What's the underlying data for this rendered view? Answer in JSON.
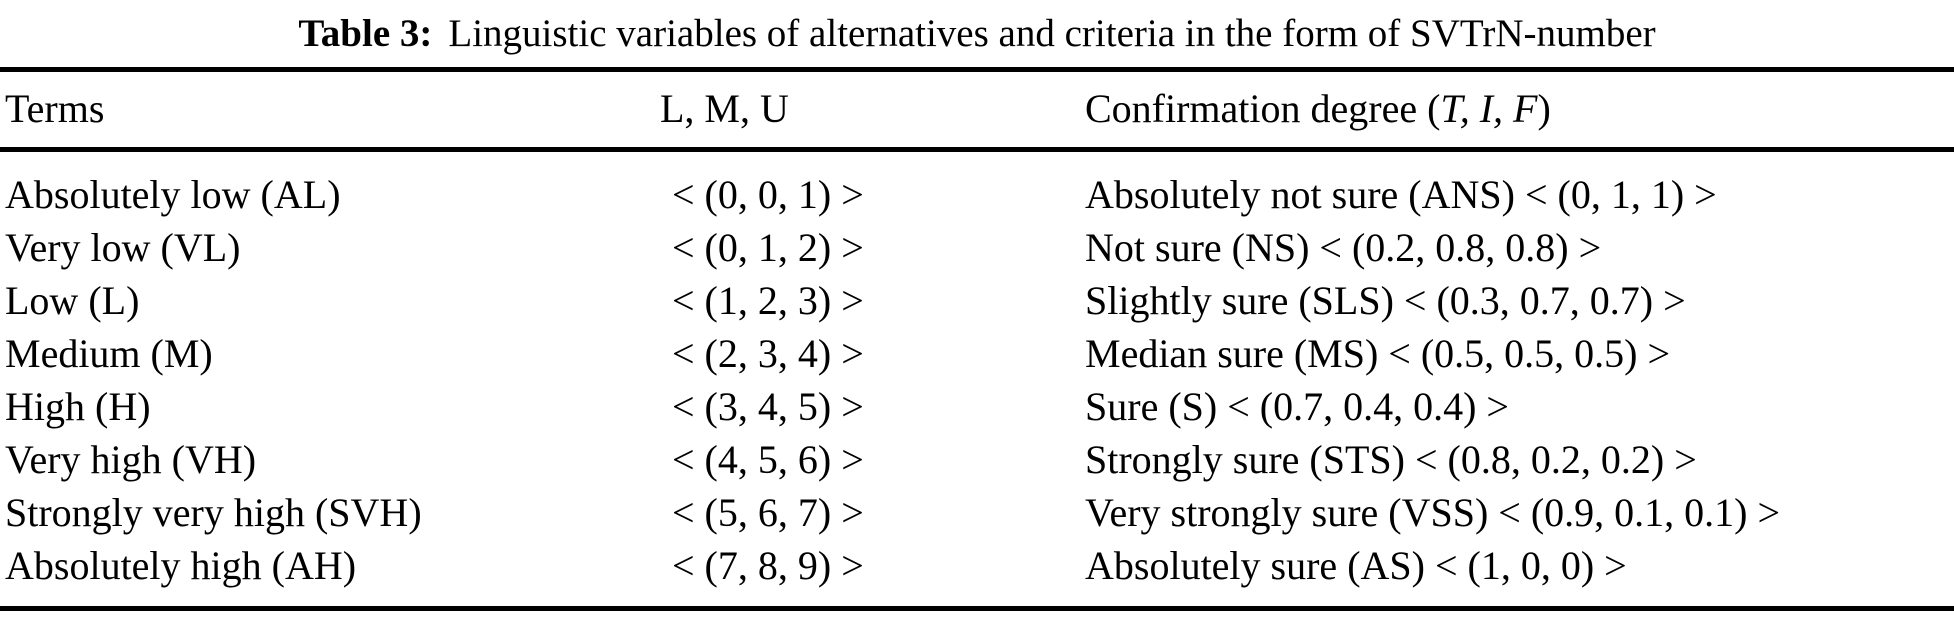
{
  "caption": {
    "label": "Table 3:",
    "text": "Linguistic variables of alternatives and criteria in the form of SVTrN-number"
  },
  "table": {
    "columns": {
      "terms": "Terms",
      "lmu": "L, M, U",
      "confirmation_prefix": "Confirmation degree (",
      "confirmation_italic": "T, I, F",
      "confirmation_suffix": ")"
    },
    "rows": [
      {
        "term": "Absolutely low (AL)",
        "lmu": "< (0, 0, 1) >",
        "confirmation": "Absolutely not sure (ANS) < (0, 1, 1) >"
      },
      {
        "term": "Very low (VL)",
        "lmu": "< (0, 1, 2) >",
        "confirmation": "Not sure (NS) < (0.2, 0.8, 0.8) >"
      },
      {
        "term": "Low (L)",
        "lmu": "< (1, 2, 3) >",
        "confirmation": "Slightly sure (SLS) < (0.3, 0.7, 0.7) >"
      },
      {
        "term": "Medium (M)",
        "lmu": "< (2, 3, 4) >",
        "confirmation": "Median sure (MS) < (0.5, 0.5, 0.5) >"
      },
      {
        "term": "High (H)",
        "lmu": "< (3, 4, 5) >",
        "confirmation": "Sure (S) < (0.7, 0.4, 0.4) >"
      },
      {
        "term": "Very high (VH)",
        "lmu": "< (4, 5, 6) >",
        "confirmation": "Strongly sure (STS) < (0.8, 0.2, 0.2) >"
      },
      {
        "term": "Strongly very high (SVH)",
        "lmu": "< (5, 6, 7) >",
        "confirmation": "Very strongly sure (VSS) < (0.9, 0.1, 0.1) >"
      },
      {
        "term": "Absolutely high (AH)",
        "lmu": "< (7, 8, 9) >",
        "confirmation": "Absolutely sure (AS) < (1, 0, 0) >"
      }
    ]
  },
  "colors": {
    "text": "#000000",
    "background": "#ffffff",
    "rule": "#000000"
  }
}
